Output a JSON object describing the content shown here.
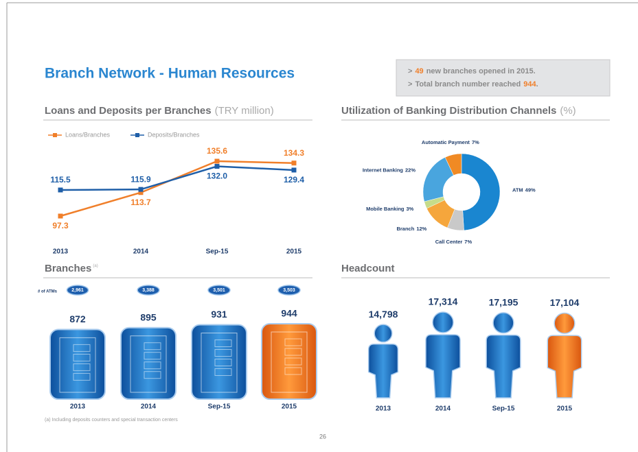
{
  "header": {
    "title": "Branch Network - Human Resources"
  },
  "callout": {
    "lines": [
      {
        "marker": ">",
        "highlight": "49",
        "text": "new branches opened in 2015."
      },
      {
        "marker": ">",
        "text": "Total branch number reached",
        "highlight": "944",
        "end": "."
      }
    ]
  },
  "chart_data": [
    {
      "type": "line",
      "title": "Loans and Deposits per Branches",
      "unit": "(TRY million)",
      "categories": [
        "2013",
        "2014",
        "Sep-15",
        "2015"
      ],
      "series": [
        {
          "name": "Loans/Branches",
          "color": "#f07f2a",
          "values": [
            97.3,
            113.7,
            135.6,
            134.3
          ],
          "value_labels": [
            "97.3",
            "113.7",
            "135.6",
            "134.3"
          ]
        },
        {
          "name": "Deposits/Branches",
          "color": "#1f5fa8",
          "values": [
            115.5,
            115.9,
            132.0,
            129.4
          ],
          "value_labels": [
            "115.5",
            "115.9",
            "132.0",
            "129.4"
          ]
        }
      ]
    },
    {
      "type": "pie",
      "title": "Utilization of Banking Distribution Channels",
      "unit": "(%)",
      "categories": [
        "ATM",
        "Call Center",
        "Branch",
        "Mobile Banking",
        "Internet Banking",
        "Automatic Payment"
      ],
      "values": [
        49,
        7,
        12,
        3,
        22,
        7
      ],
      "value_labels": [
        "49%",
        "7%",
        "12%",
        "3%",
        "22%",
        "7%"
      ],
      "colors": [
        "#1a86d0",
        "#c9c9c9",
        "#f5a63c",
        "#c6dc8a",
        "#49a5de",
        "#f08a24"
      ]
    },
    {
      "type": "branches",
      "title": "Branches",
      "note_marker": "(a)",
      "categories": [
        "2013",
        "2014",
        "Sep-15",
        "2015"
      ],
      "values": [
        872,
        895,
        931,
        944
      ],
      "colors": [
        "#1e6fc0",
        "#1e6fc0",
        "#1e6fc0",
        "#f07f2a"
      ],
      "atm_label": "# of ATMs",
      "atms": [
        2961,
        3388,
        3501,
        3503
      ],
      "atm_labels": [
        "2,961",
        "3,388",
        "3,501",
        "3,503"
      ]
    },
    {
      "type": "headcount",
      "title": "Headcount",
      "categories": [
        "2013",
        "2014",
        "Sep-15",
        "2015"
      ],
      "values": [
        14798,
        17314,
        17195,
        17104
      ],
      "value_labels": [
        "14,798",
        "17,314",
        "17,195",
        "17,104"
      ],
      "colors": [
        "#1e6fc0",
        "#1e6fc0",
        "#1e6fc0",
        "#f07f2a"
      ]
    }
  ],
  "footnote": "(a) Including deposits counters and special transaction centers",
  "page_number": "26"
}
